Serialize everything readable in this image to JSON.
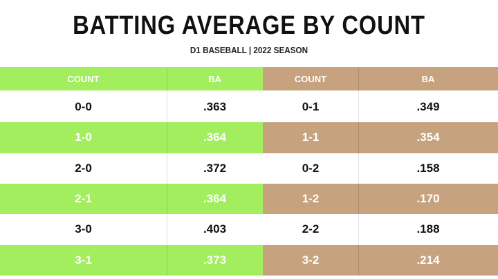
{
  "header": {
    "title": "BATTING AVERAGE BY COUNT",
    "subtitle": "D1 BASEBALL | 2022 SEASON"
  },
  "table": {
    "columns": [
      "COUNT",
      "BA",
      "COUNT",
      "BA"
    ],
    "rows": [
      [
        "0-0",
        ".363",
        "0-1",
        ".349"
      ],
      [
        "1-0",
        ".364",
        "1-1",
        ".354"
      ],
      [
        "2-0",
        ".372",
        "0-2",
        ".158"
      ],
      [
        "2-1",
        ".364",
        "1-2",
        ".170"
      ],
      [
        "3-0",
        ".403",
        "2-2",
        ".188"
      ],
      [
        "3-1",
        ".373",
        "3-2",
        ".214"
      ]
    ]
  }
}
